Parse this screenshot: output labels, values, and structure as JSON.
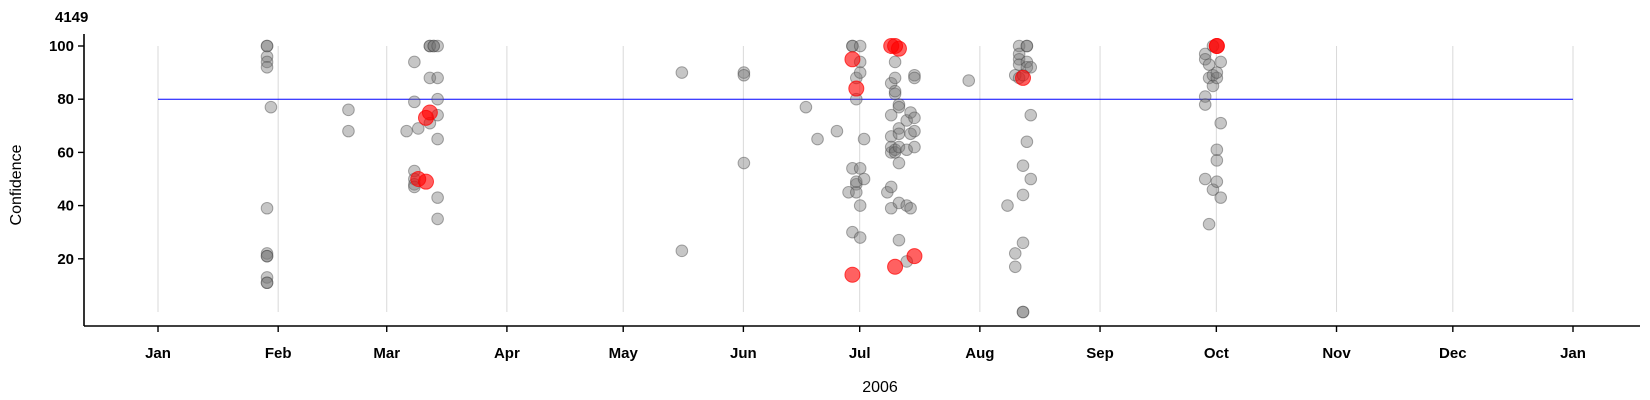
{
  "chart_data": {
    "type": "scatter",
    "title": "4149",
    "xlabel": "2006",
    "ylabel": "Confidence",
    "xlim": [
      "2006-01-01",
      "2007-01-01"
    ],
    "ylim": [
      0,
      100
    ],
    "x_ticks": [
      "Jan",
      "Feb",
      "Mar",
      "Apr",
      "May",
      "Jun",
      "Jul",
      "Aug",
      "Sep",
      "Oct",
      "Nov",
      "Dec",
      "Jan"
    ],
    "x_tick_dates": [
      "2006-01-01",
      "2006-02-01",
      "2006-03-01",
      "2006-04-01",
      "2006-05-01",
      "2006-06-01",
      "2006-07-01",
      "2006-08-01",
      "2006-09-01",
      "2006-10-01",
      "2006-11-01",
      "2006-12-01",
      "2007-01-01"
    ],
    "y_ticks": [
      20,
      40,
      60,
      80,
      100
    ],
    "threshold_line": 80,
    "colors": {
      "normal": "#808080",
      "highlight": "#ff0000",
      "threshold": "#0000ff",
      "grid": "#d9d9d9"
    },
    "point_fields": [
      "date",
      "confidence",
      "highlighted"
    ],
    "points": [
      [
        "2006-01-29",
        100,
        false
      ],
      [
        "2006-01-29",
        100,
        false
      ],
      [
        "2006-01-29",
        96,
        false
      ],
      [
        "2006-01-29",
        94,
        false
      ],
      [
        "2006-01-29",
        92,
        false
      ],
      [
        "2006-01-29",
        39,
        false
      ],
      [
        "2006-01-29",
        22,
        false
      ],
      [
        "2006-01-29",
        21,
        false
      ],
      [
        "2006-01-29",
        21,
        false
      ],
      [
        "2006-01-29",
        13,
        false
      ],
      [
        "2006-01-29",
        11,
        false
      ],
      [
        "2006-01-29",
        11,
        false
      ],
      [
        "2006-01-30",
        77,
        false
      ],
      [
        "2006-02-19",
        76,
        false
      ],
      [
        "2006-02-19",
        68,
        false
      ],
      [
        "2006-03-06",
        68,
        false
      ],
      [
        "2006-03-08",
        94,
        false
      ],
      [
        "2006-03-08",
        79,
        false
      ],
      [
        "2006-03-08",
        53,
        false
      ],
      [
        "2006-03-08",
        50,
        false
      ],
      [
        "2006-03-08",
        48,
        false
      ],
      [
        "2006-03-08",
        47,
        false
      ],
      [
        "2006-03-09",
        69,
        false
      ],
      [
        "2006-03-09",
        50,
        true
      ],
      [
        "2006-03-11",
        49,
        true
      ],
      [
        "2006-03-11",
        73,
        true
      ],
      [
        "2006-03-12",
        75,
        true
      ],
      [
        "2006-03-12",
        100,
        false
      ],
      [
        "2006-03-12",
        100,
        false
      ],
      [
        "2006-03-12",
        88,
        false
      ],
      [
        "2006-03-12",
        71,
        false
      ],
      [
        "2006-03-13",
        100,
        false
      ],
      [
        "2006-03-13",
        100,
        false
      ],
      [
        "2006-03-14",
        100,
        false
      ],
      [
        "2006-03-14",
        88,
        false
      ],
      [
        "2006-03-14",
        80,
        false
      ],
      [
        "2006-03-14",
        74,
        false
      ],
      [
        "2006-03-14",
        65,
        false
      ],
      [
        "2006-03-14",
        43,
        false
      ],
      [
        "2006-03-14",
        35,
        false
      ],
      [
        "2006-05-16",
        90,
        false
      ],
      [
        "2006-05-16",
        23,
        false
      ],
      [
        "2006-06-01",
        90,
        false
      ],
      [
        "2006-06-01",
        89,
        false
      ],
      [
        "2006-06-01",
        56,
        false
      ],
      [
        "2006-06-17",
        77,
        false
      ],
      [
        "2006-06-20",
        65,
        false
      ],
      [
        "2006-06-25",
        68,
        false
      ],
      [
        "2006-06-28",
        45,
        false
      ],
      [
        "2006-06-29",
        100,
        false
      ],
      [
        "2006-06-29",
        100,
        false
      ],
      [
        "2006-06-29",
        95,
        true
      ],
      [
        "2006-06-29",
        54,
        false
      ],
      [
        "2006-06-29",
        30,
        false
      ],
      [
        "2006-06-29",
        14,
        true
      ],
      [
        "2006-06-30",
        88,
        false
      ],
      [
        "2006-06-30",
        84,
        true
      ],
      [
        "2006-06-30",
        80,
        false
      ],
      [
        "2006-06-30",
        48,
        false
      ],
      [
        "2006-06-30",
        45,
        false
      ],
      [
        "2006-06-30",
        49,
        false
      ],
      [
        "2006-07-01",
        100,
        false
      ],
      [
        "2006-07-01",
        94,
        false
      ],
      [
        "2006-07-01",
        90,
        false
      ],
      [
        "2006-07-01",
        54,
        false
      ],
      [
        "2006-07-01",
        40,
        false
      ],
      [
        "2006-07-01",
        28,
        false
      ],
      [
        "2006-07-02",
        65,
        false
      ],
      [
        "2006-07-02",
        50,
        false
      ],
      [
        "2006-07-08",
        45,
        false
      ],
      [
        "2006-07-09",
        100,
        true
      ],
      [
        "2006-07-09",
        86,
        false
      ],
      [
        "2006-07-09",
        74,
        false
      ],
      [
        "2006-07-09",
        66,
        false
      ],
      [
        "2006-07-09",
        47,
        false
      ],
      [
        "2006-07-09",
        39,
        false
      ],
      [
        "2006-07-09",
        60,
        false
      ],
      [
        "2006-07-09",
        62,
        false
      ],
      [
        "2006-07-10",
        100,
        true
      ],
      [
        "2006-07-10",
        94,
        false
      ],
      [
        "2006-07-10",
        88,
        false
      ],
      [
        "2006-07-10",
        82,
        false
      ],
      [
        "2006-07-10",
        83,
        false
      ],
      [
        "2006-07-10",
        61,
        false
      ],
      [
        "2006-07-10",
        60,
        false
      ],
      [
        "2006-07-10",
        17,
        true
      ],
      [
        "2006-07-11",
        99,
        true
      ],
      [
        "2006-07-11",
        78,
        false
      ],
      [
        "2006-07-11",
        77,
        false
      ],
      [
        "2006-07-11",
        69,
        false
      ],
      [
        "2006-07-11",
        67,
        false
      ],
      [
        "2006-07-11",
        62,
        false
      ],
      [
        "2006-07-11",
        56,
        false
      ],
      [
        "2006-07-11",
        41,
        false
      ],
      [
        "2006-07-11",
        27,
        false
      ],
      [
        "2006-07-13",
        72,
        false
      ],
      [
        "2006-07-13",
        61,
        false
      ],
      [
        "2006-07-13",
        40,
        false
      ],
      [
        "2006-07-13",
        19,
        false
      ],
      [
        "2006-07-14",
        75,
        false
      ],
      [
        "2006-07-14",
        67,
        false
      ],
      [
        "2006-07-14",
        39,
        false
      ],
      [
        "2006-07-15",
        21,
        true
      ],
      [
        "2006-07-15",
        73,
        false
      ],
      [
        "2006-07-15",
        68,
        false
      ],
      [
        "2006-07-15",
        89,
        false
      ],
      [
        "2006-07-15",
        88,
        false
      ],
      [
        "2006-07-15",
        62,
        false
      ],
      [
        "2006-07-29",
        87,
        false
      ],
      [
        "2006-08-08",
        40,
        false
      ],
      [
        "2006-08-10",
        89,
        false
      ],
      [
        "2006-08-10",
        22,
        false
      ],
      [
        "2006-08-10",
        17,
        false
      ],
      [
        "2006-08-11",
        100,
        false
      ],
      [
        "2006-08-11",
        97,
        false
      ],
      [
        "2006-08-11",
        95,
        false
      ],
      [
        "2006-08-11",
        93,
        false
      ],
      [
        "2006-08-11",
        88,
        false
      ],
      [
        "2006-08-12",
        88,
        true
      ],
      [
        "2006-08-12",
        89,
        false
      ],
      [
        "2006-08-12",
        55,
        false
      ],
      [
        "2006-08-12",
        44,
        false
      ],
      [
        "2006-08-12",
        26,
        false
      ],
      [
        "2006-08-12",
        0,
        false
      ],
      [
        "2006-08-12",
        0,
        false
      ],
      [
        "2006-08-13",
        100,
        false
      ],
      [
        "2006-08-13",
        100,
        false
      ],
      [
        "2006-08-13",
        94,
        false
      ],
      [
        "2006-08-13",
        92,
        false
      ],
      [
        "2006-08-13",
        64,
        false
      ],
      [
        "2006-08-14",
        92,
        false
      ],
      [
        "2006-08-14",
        74,
        false
      ],
      [
        "2006-08-14",
        50,
        false
      ],
      [
        "2006-09-28",
        97,
        false
      ],
      [
        "2006-09-28",
        95,
        false
      ],
      [
        "2006-09-28",
        81,
        false
      ],
      [
        "2006-09-28",
        78,
        false
      ],
      [
        "2006-09-28",
        50,
        false
      ],
      [
        "2006-09-29",
        33,
        false
      ],
      [
        "2006-09-29",
        93,
        false
      ],
      [
        "2006-09-29",
        88,
        false
      ],
      [
        "2006-09-30",
        100,
        false
      ],
      [
        "2006-09-30",
        89,
        false
      ],
      [
        "2006-09-30",
        85,
        false
      ],
      [
        "2006-09-30",
        46,
        false
      ],
      [
        "2006-10-01",
        100,
        true
      ],
      [
        "2006-10-01",
        100,
        true
      ],
      [
        "2006-10-01",
        61,
        false
      ],
      [
        "2006-10-01",
        88,
        false
      ],
      [
        "2006-10-01",
        90,
        false
      ],
      [
        "2006-10-01",
        57,
        false
      ],
      [
        "2006-10-01",
        49,
        false
      ],
      [
        "2006-10-02",
        94,
        false
      ],
      [
        "2006-10-02",
        71,
        false
      ],
      [
        "2006-10-02",
        43,
        false
      ]
    ]
  }
}
